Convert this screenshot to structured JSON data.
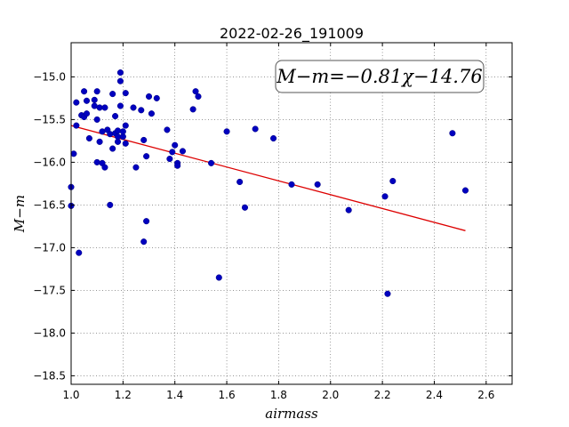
{
  "chart_data": {
    "type": "scatter",
    "title": "2022-02-26_191009",
    "xlabel": "airmass",
    "ylabel": "M−m",
    "xlim": [
      1.0,
      2.7
    ],
    "ylim": [
      -18.6,
      -14.6
    ],
    "yinverted": false,
    "grid": true,
    "xticks": [
      "1.0",
      "1.2",
      "1.4",
      "1.6",
      "1.8",
      "2.0",
      "2.2",
      "2.4",
      "2.6"
    ],
    "xtick_values": [
      1.0,
      1.2,
      1.4,
      1.6,
      1.8,
      2.0,
      2.2,
      2.4,
      2.6
    ],
    "yticks": [
      "−15.0",
      "−15.5",
      "−16.0",
      "−16.5",
      "−17.0",
      "−17.5",
      "−18.0",
      "−18.5"
    ],
    "ytick_values": [
      -15.0,
      -15.5,
      -16.0,
      -16.5,
      -17.0,
      -17.5,
      -18.0,
      -18.5
    ],
    "annotation": "M−m=−0.81χ−14.76",
    "annotation_position": "top-right",
    "fit_line": {
      "slope": -0.81,
      "intercept": -14.76,
      "x": [
        1.0,
        2.52
      ]
    },
    "colors": {
      "points": "#0000bf",
      "fit": "#dd0000"
    },
    "points": [
      [
        1.0,
        -16.29
      ],
      [
        1.0,
        -16.51
      ],
      [
        1.01,
        -15.9
      ],
      [
        1.02,
        -15.57
      ],
      [
        1.02,
        -15.3
      ],
      [
        1.03,
        -17.06
      ],
      [
        1.04,
        -15.45
      ],
      [
        1.05,
        -15.17
      ],
      [
        1.05,
        -15.47
      ],
      [
        1.06,
        -15.28
      ],
      [
        1.06,
        -15.43
      ],
      [
        1.07,
        -15.72
      ],
      [
        1.09,
        -15.34
      ],
      [
        1.09,
        -15.27
      ],
      [
        1.1,
        -15.5
      ],
      [
        1.1,
        -15.17
      ],
      [
        1.1,
        -16.0
      ],
      [
        1.11,
        -15.76
      ],
      [
        1.11,
        -15.36
      ],
      [
        1.12,
        -15.64
      ],
      [
        1.12,
        -16.01
      ],
      [
        1.13,
        -16.06
      ],
      [
        1.13,
        -15.36
      ],
      [
        1.14,
        -15.62
      ],
      [
        1.15,
        -16.5
      ],
      [
        1.15,
        -15.67
      ],
      [
        1.16,
        -15.84
      ],
      [
        1.16,
        -15.2
      ],
      [
        1.17,
        -15.46
      ],
      [
        1.17,
        -15.66
      ],
      [
        1.18,
        -15.76
      ],
      [
        1.18,
        -15.63
      ],
      [
        1.18,
        -15.7
      ],
      [
        1.19,
        -15.34
      ],
      [
        1.19,
        -15.05
      ],
      [
        1.19,
        -14.95
      ],
      [
        1.2,
        -15.7
      ],
      [
        1.2,
        -15.64
      ],
      [
        1.21,
        -15.57
      ],
      [
        1.21,
        -15.78
      ],
      [
        1.21,
        -15.19
      ],
      [
        1.24,
        -15.36
      ],
      [
        1.25,
        -16.06
      ],
      [
        1.27,
        -15.39
      ],
      [
        1.28,
        -16.93
      ],
      [
        1.28,
        -15.74
      ],
      [
        1.29,
        -15.93
      ],
      [
        1.29,
        -16.69
      ],
      [
        1.3,
        -15.23
      ],
      [
        1.31,
        -15.43
      ],
      [
        1.33,
        -15.25
      ],
      [
        1.37,
        -15.62
      ],
      [
        1.38,
        -15.96
      ],
      [
        1.39,
        -15.88
      ],
      [
        1.4,
        -15.8
      ],
      [
        1.41,
        -16.01
      ],
      [
        1.41,
        -16.04
      ],
      [
        1.43,
        -15.87
      ],
      [
        1.47,
        -15.38
      ],
      [
        1.48,
        -15.17
      ],
      [
        1.49,
        -15.23
      ],
      [
        1.54,
        -16.01
      ],
      [
        1.57,
        -17.35
      ],
      [
        1.6,
        -15.64
      ],
      [
        1.65,
        -16.23
      ],
      [
        1.67,
        -16.53
      ],
      [
        1.71,
        -15.61
      ],
      [
        1.78,
        -15.72
      ],
      [
        1.85,
        -16.26
      ],
      [
        1.95,
        -16.26
      ],
      [
        2.07,
        -16.56
      ],
      [
        2.21,
        -16.4
      ],
      [
        2.22,
        -17.54
      ],
      [
        2.24,
        -16.22
      ],
      [
        2.47,
        -15.66
      ],
      [
        2.52,
        -16.33
      ]
    ]
  }
}
